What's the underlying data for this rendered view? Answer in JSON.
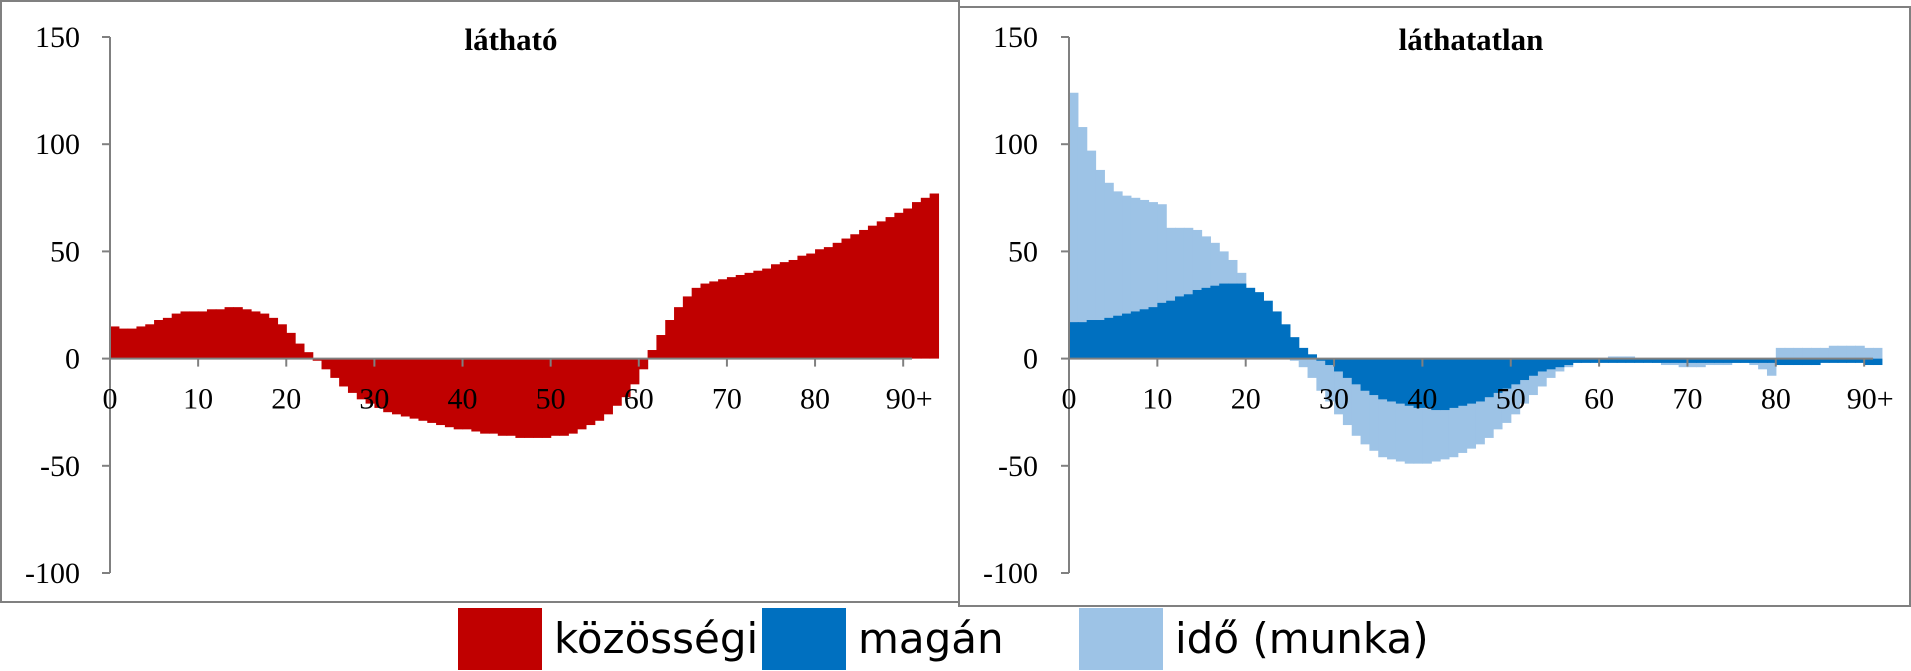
{
  "chart_data": [
    {
      "type": "bar",
      "title": "látható",
      "xlabel": "",
      "ylabel": "",
      "ylim": [
        -100,
        150
      ],
      "yticks": [
        "150",
        "100",
        "50",
        "0",
        "-50",
        "-100"
      ],
      "xticks": [
        "0",
        "10",
        "20",
        "30",
        "40",
        "50",
        "60",
        "70",
        "80",
        "90+"
      ],
      "xlim": [
        0,
        91
      ],
      "grid": false,
      "series": [
        {
          "key": "kozossegi",
          "color": "#C00000",
          "stacked": false,
          "values": [
            15,
            14,
            14,
            15,
            16,
            18,
            19,
            21,
            22,
            22,
            22,
            23,
            23,
            24,
            24,
            23,
            22,
            21,
            19,
            16,
            12,
            7,
            3,
            -1,
            -5,
            -9,
            -13,
            -16,
            -19,
            -21,
            -23,
            -25,
            -26,
            -27,
            -28,
            -29,
            -30,
            -31,
            -32,
            -33,
            -33,
            -34,
            -35,
            -35,
            -36,
            -36,
            -37,
            -37,
            -37,
            -37,
            -36,
            -36,
            -35,
            -33,
            -31,
            -29,
            -26,
            -22,
            -18,
            -12,
            -5,
            4,
            11,
            18,
            24,
            29,
            33,
            35,
            36,
            37,
            38,
            39,
            40,
            41,
            42,
            44,
            45,
            46,
            48,
            49,
            51,
            52,
            54,
            56,
            58,
            60,
            62,
            64,
            66,
            68,
            70,
            73,
            75,
            77
          ]
        }
      ]
    },
    {
      "type": "bar",
      "title": "láthatatlan",
      "xlabel": "",
      "ylabel": "",
      "ylim": [
        -100,
        150
      ],
      "yticks": [
        "150",
        "100",
        "50",
        "0",
        "-50",
        "-100"
      ],
      "xticks": [
        "0",
        "10",
        "20",
        "30",
        "40",
        "50",
        "60",
        "70",
        "80",
        "90+"
      ],
      "xlim": [
        0,
        91
      ],
      "grid": false,
      "series": [
        {
          "key": "ido",
          "color": "#9DC3E6",
          "stacked": false,
          "values": [
            124,
            108,
            97,
            88,
            82,
            78,
            76,
            75,
            74,
            73,
            72,
            61,
            61,
            61,
            60,
            57,
            54,
            50,
            46,
            40,
            33,
            24,
            16,
            8,
            2,
            -1,
            -4,
            -9,
            -15,
            -20,
            -26,
            -31,
            -36,
            -40,
            -43,
            -46,
            -47,
            -48,
            -49,
            -49,
            -49,
            -48,
            -47,
            -46,
            -44,
            -42,
            -40,
            -37,
            -33,
            -30,
            -26,
            -21,
            -17,
            -13,
            -9,
            -6,
            -4,
            -2,
            -1,
            0,
            0,
            1,
            1,
            1,
            0,
            -1,
            -2,
            -3,
            -3,
            -4,
            -4,
            -4,
            -3,
            -3,
            -3,
            -2,
            -2,
            -3,
            -5,
            -8,
            5,
            5,
            5,
            5,
            5,
            5,
            6,
            6,
            6,
            6,
            5,
            5
          ]
        },
        {
          "key": "magan",
          "color": "#0070C0",
          "stacked": false,
          "values": [
            17,
            17,
            18,
            18,
            19,
            20,
            21,
            22,
            23,
            24,
            26,
            27,
            29,
            30,
            32,
            33,
            34,
            35,
            35,
            35,
            33,
            31,
            27,
            22,
            16,
            10,
            5,
            2,
            -1,
            -3,
            -6,
            -9,
            -12,
            -15,
            -17,
            -19,
            -20,
            -21,
            -22,
            -23,
            -23,
            -24,
            -24,
            -23,
            -22,
            -21,
            -20,
            -18,
            -16,
            -14,
            -12,
            -10,
            -8,
            -6,
            -5,
            -4,
            -3,
            -2,
            -2,
            -2,
            -2,
            -2,
            -2,
            -2,
            -2,
            -2,
            -2,
            -2,
            -2,
            -2,
            -2,
            -2,
            -2,
            -2,
            -2,
            -2,
            -2,
            -2,
            -2,
            -2,
            -3,
            -3,
            -3,
            -3,
            -3,
            -2,
            -2,
            -2,
            -2,
            -2,
            -3,
            -3
          ]
        }
      ]
    }
  ],
  "legend": [
    {
      "label": "közösségi",
      "color": "#C00000"
    },
    {
      "label": "magán",
      "color": "#0070C0"
    },
    {
      "label": "idő (munka)",
      "color": "#9DC3E6"
    }
  ]
}
